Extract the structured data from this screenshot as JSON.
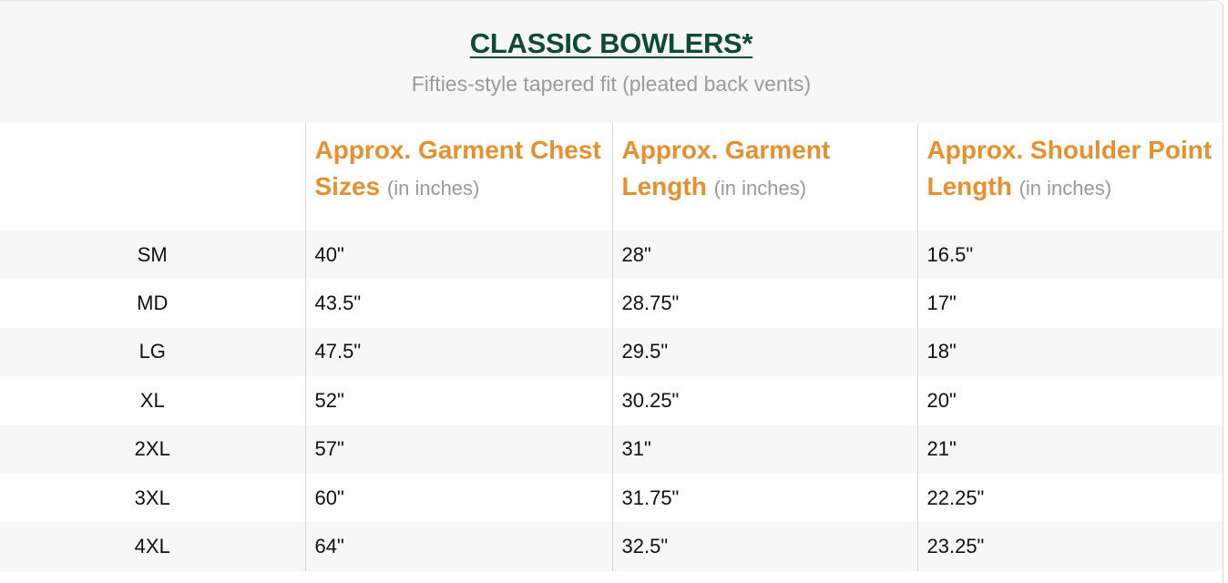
{
  "header": {
    "title": "CLASSIC BOWLERS*",
    "subtitle": "Fifties-style tapered fit (pleated back vents)"
  },
  "columns": [
    {
      "label": "Approx. Garment Chest Sizes",
      "unit": "(in inches)"
    },
    {
      "label": "Approx. Garment Length",
      "unit": "(in inches)"
    },
    {
      "label": "Approx. Shoulder Point Length",
      "unit": "(in inches)"
    }
  ],
  "rows": [
    {
      "size": "SM",
      "chest": "40\"",
      "length": "28\"",
      "shoulder": "16.5\""
    },
    {
      "size": "MD",
      "chest": "43.5\"",
      "length": "28.75\"",
      "shoulder": "17\""
    },
    {
      "size": "LG",
      "chest": "47.5\"",
      "length": "29.5\"",
      "shoulder": "18\""
    },
    {
      "size": "XL",
      "chest": "52\"",
      "length": "30.25\"",
      "shoulder": "20\""
    },
    {
      "size": "2XL",
      "chest": "57\"",
      "length": "31\"",
      "shoulder": "21\""
    },
    {
      "size": "3XL",
      "chest": "60\"",
      "length": "31.75\"",
      "shoulder": "22.25\""
    },
    {
      "size": "4XL",
      "chest": "64\"",
      "length": "32.5\"",
      "shoulder": "23.25\""
    }
  ],
  "colors": {
    "title": "#0f4a36",
    "header_accent": "#e8902e",
    "muted": "#999999",
    "stripe": "#f7f7f7"
  }
}
